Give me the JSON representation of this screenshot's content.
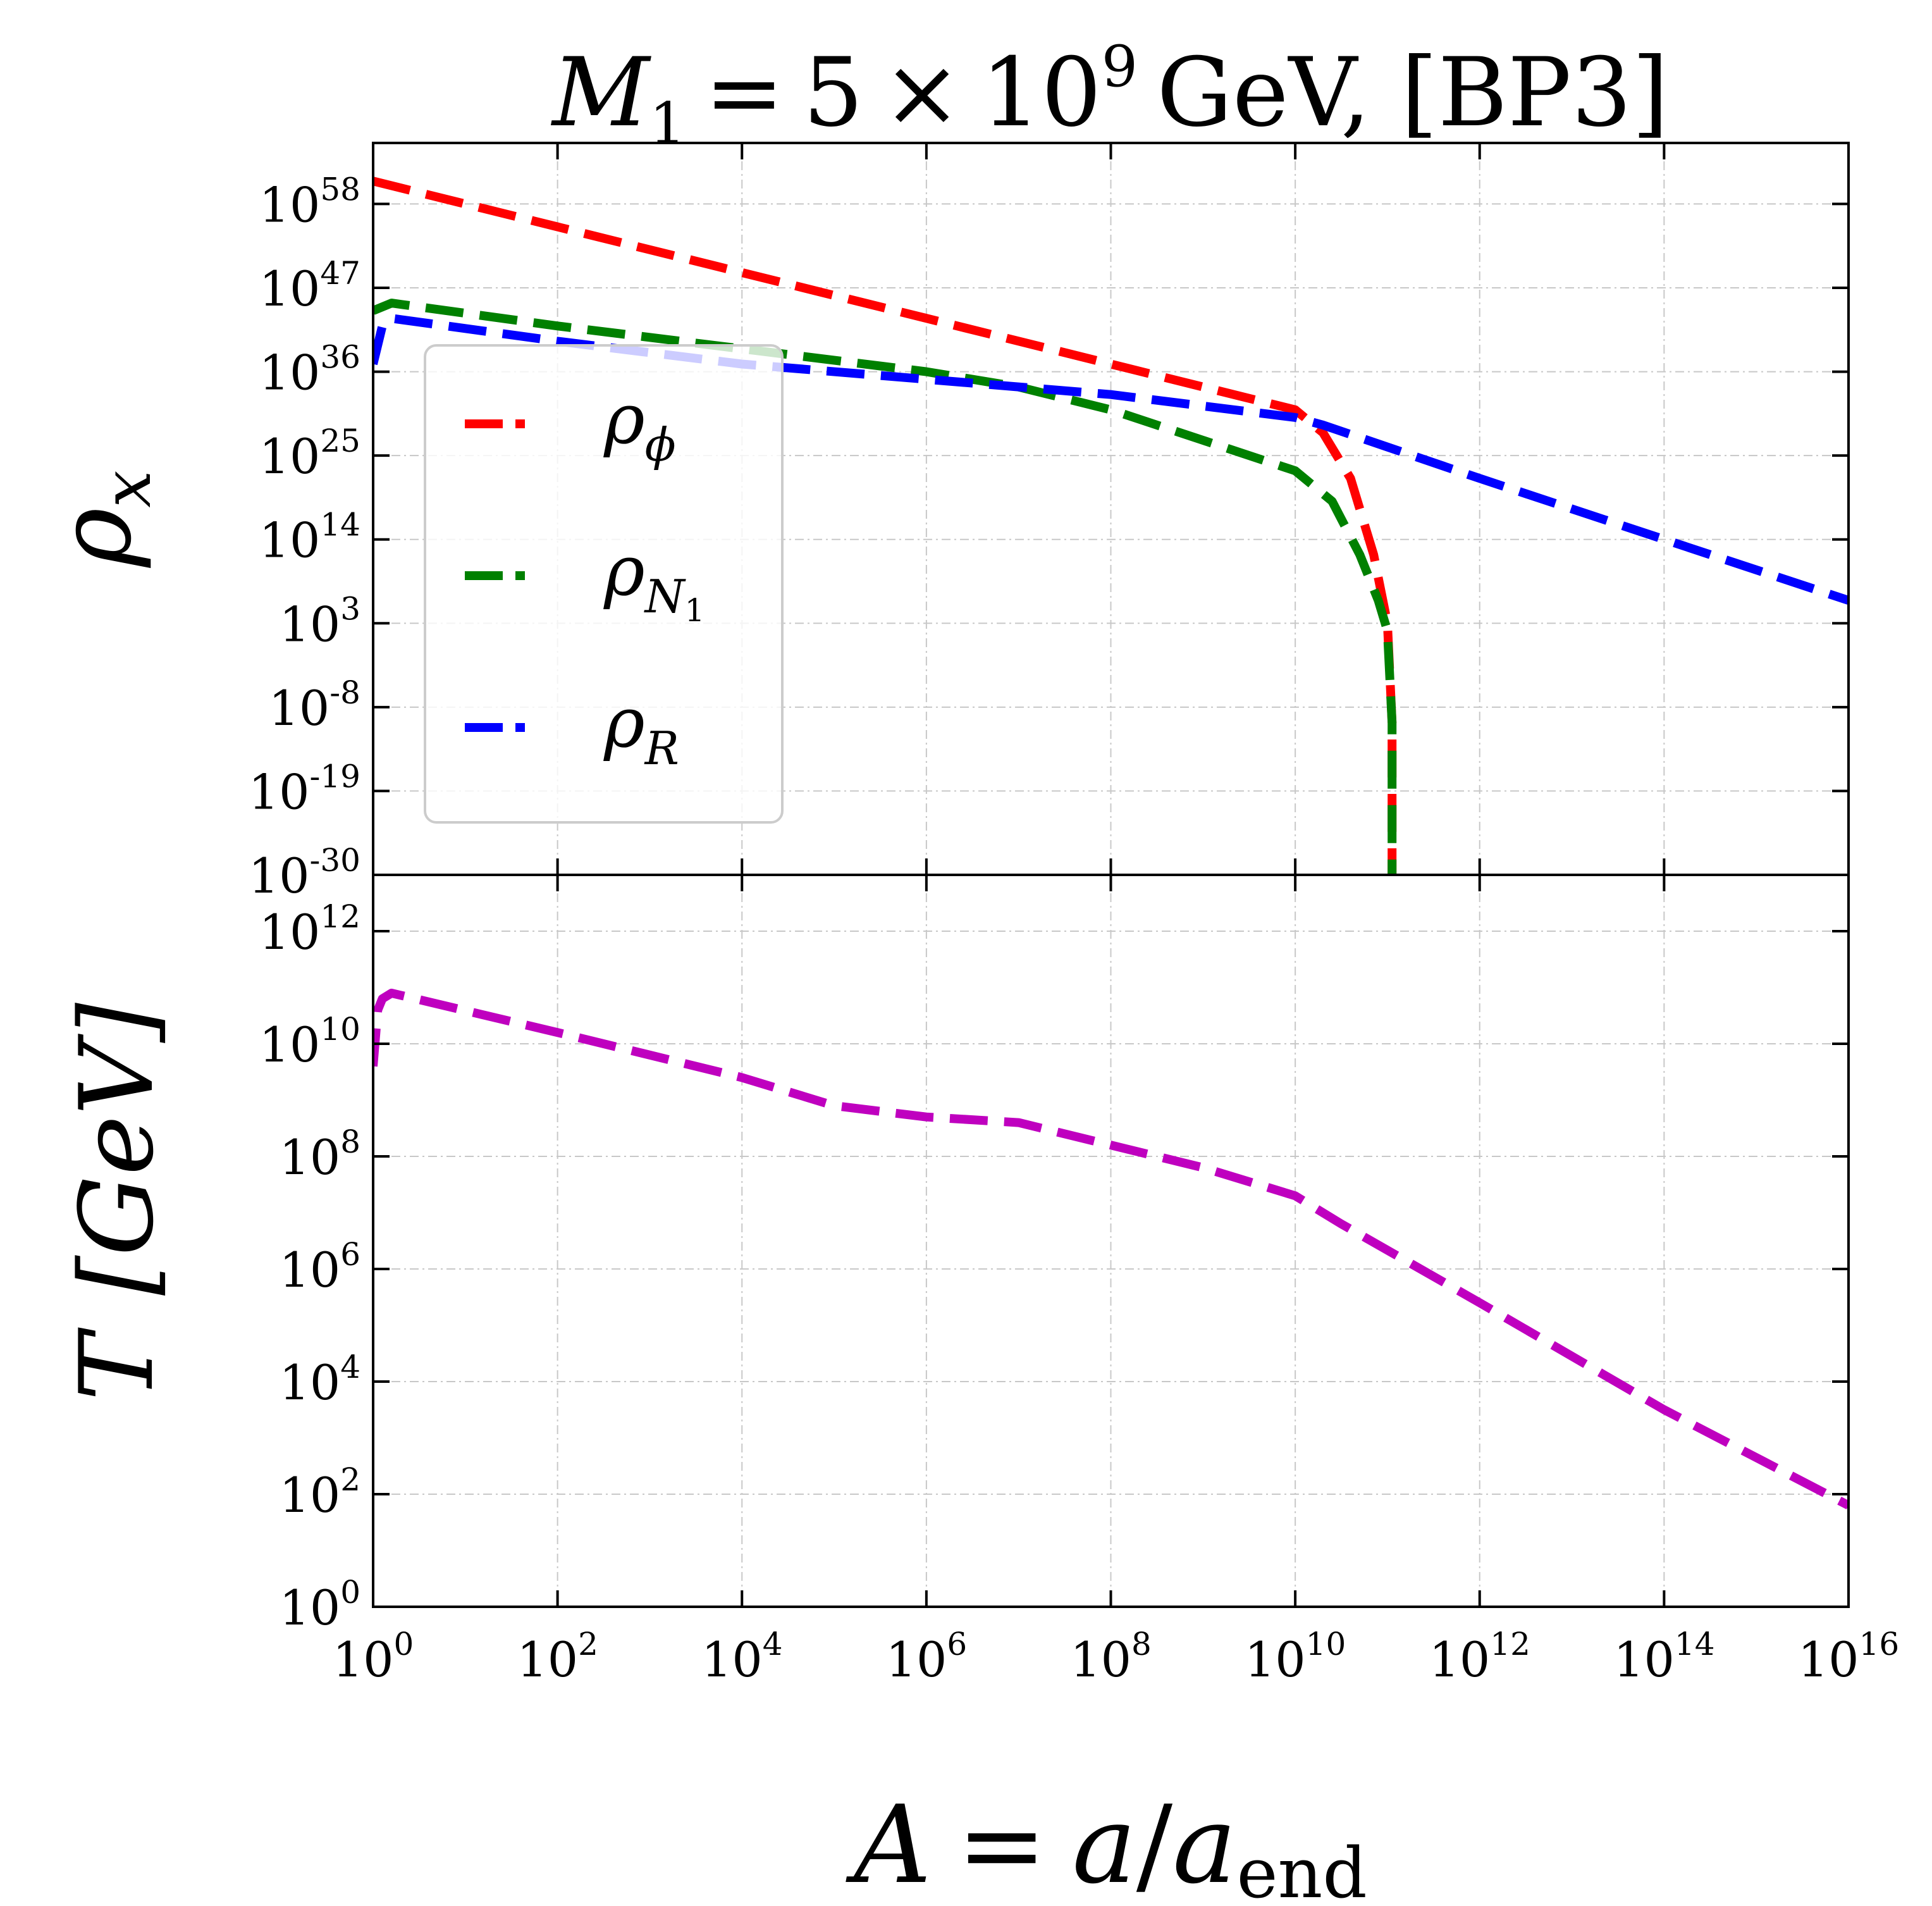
{
  "chart_data": [
    {
      "type": "line",
      "panel": "top",
      "title_parts": {
        "symbol": "M",
        "subscript": "1",
        "equals": "=",
        "mantissa": "5",
        "times": "×",
        "base": "10",
        "exponent": "9",
        "rest": "GeV, [BP3]"
      },
      "xlabel": "",
      "ylabel": {
        "symbol": "ρ",
        "subscript": "x"
      },
      "xscale": "log10",
      "yscale": "log10",
      "xlim_log10": [
        0,
        16
      ],
      "ylim_log10": [
        -30,
        66
      ],
      "ytick_exponents": [
        "-30",
        "-19",
        "-8",
        "3",
        "14",
        "25",
        "36",
        "47",
        "58"
      ],
      "legend": {
        "placement": "center-left",
        "entries": [
          {
            "series": "rho_phi",
            "symbol": "ρ",
            "subscript": "ϕ"
          },
          {
            "series": "rho_N1",
            "symbol": "ρ",
            "subscript": "N",
            "subsub": "1"
          },
          {
            "series": "rho_R",
            "symbol": "ρ",
            "subscript": "R"
          }
        ]
      },
      "series": [
        {
          "name": "rho_phi",
          "color": "#ff0000",
          "x_log10": [
            0,
            2,
            4,
            6,
            8,
            9,
            10,
            10.3,
            10.6,
            10.85,
            11.0,
            11.05,
            11.05
          ],
          "y_log10": [
            61,
            55,
            49,
            43,
            37,
            34,
            31,
            28,
            22,
            12,
            3,
            -10,
            -30
          ]
        },
        {
          "name": "rho_N1",
          "color": "#008000",
          "x_log10": [
            0,
            0.2,
            2,
            4,
            6,
            7,
            8,
            9,
            10,
            10.4,
            10.7,
            10.9,
            11.0,
            11.05,
            11.05
          ],
          "y_log10": [
            44,
            45,
            42,
            39,
            36,
            34,
            31,
            27,
            23,
            19,
            12,
            6,
            2,
            -10,
            -30
          ]
        },
        {
          "name": "rho_R",
          "color": "#0000ff",
          "x_log10": [
            0,
            0.1,
            0.2,
            2,
            4,
            6,
            8,
            10,
            10.3,
            12,
            14,
            16
          ],
          "y_log10": [
            37,
            42,
            43,
            40,
            37,
            35,
            33,
            30,
            29,
            22,
            14,
            6
          ]
        }
      ]
    },
    {
      "type": "line",
      "panel": "bottom",
      "xlabel": {
        "symbol": "A",
        "equals": "=",
        "a": "a",
        "slash": "/",
        "a2": "a",
        "sub": "end"
      },
      "ylabel": {
        "symbol": "T",
        "unit": "[GeV]"
      },
      "xscale": "log10",
      "yscale": "log10",
      "xlim_log10": [
        0,
        16
      ],
      "ylim_log10": [
        0,
        13
      ],
      "xtick_exponents": [
        "0",
        "2",
        "4",
        "6",
        "8",
        "10",
        "12",
        "14",
        "16"
      ],
      "ytick_exponents": [
        "0",
        "2",
        "4",
        "6",
        "8",
        "10",
        "12"
      ],
      "series": [
        {
          "name": "T",
          "color": "#bf00bf",
          "x_log10": [
            0,
            0.05,
            0.1,
            0.2,
            2,
            4,
            5,
            6,
            7,
            8,
            9,
            10,
            10.5,
            12,
            14,
            16
          ],
          "y_log10": [
            9.6,
            10.6,
            10.8,
            10.9,
            10.2,
            9.4,
            8.9,
            8.7,
            8.6,
            8.2,
            7.8,
            7.3,
            6.8,
            5.4,
            3.5,
            1.8
          ]
        }
      ]
    }
  ]
}
